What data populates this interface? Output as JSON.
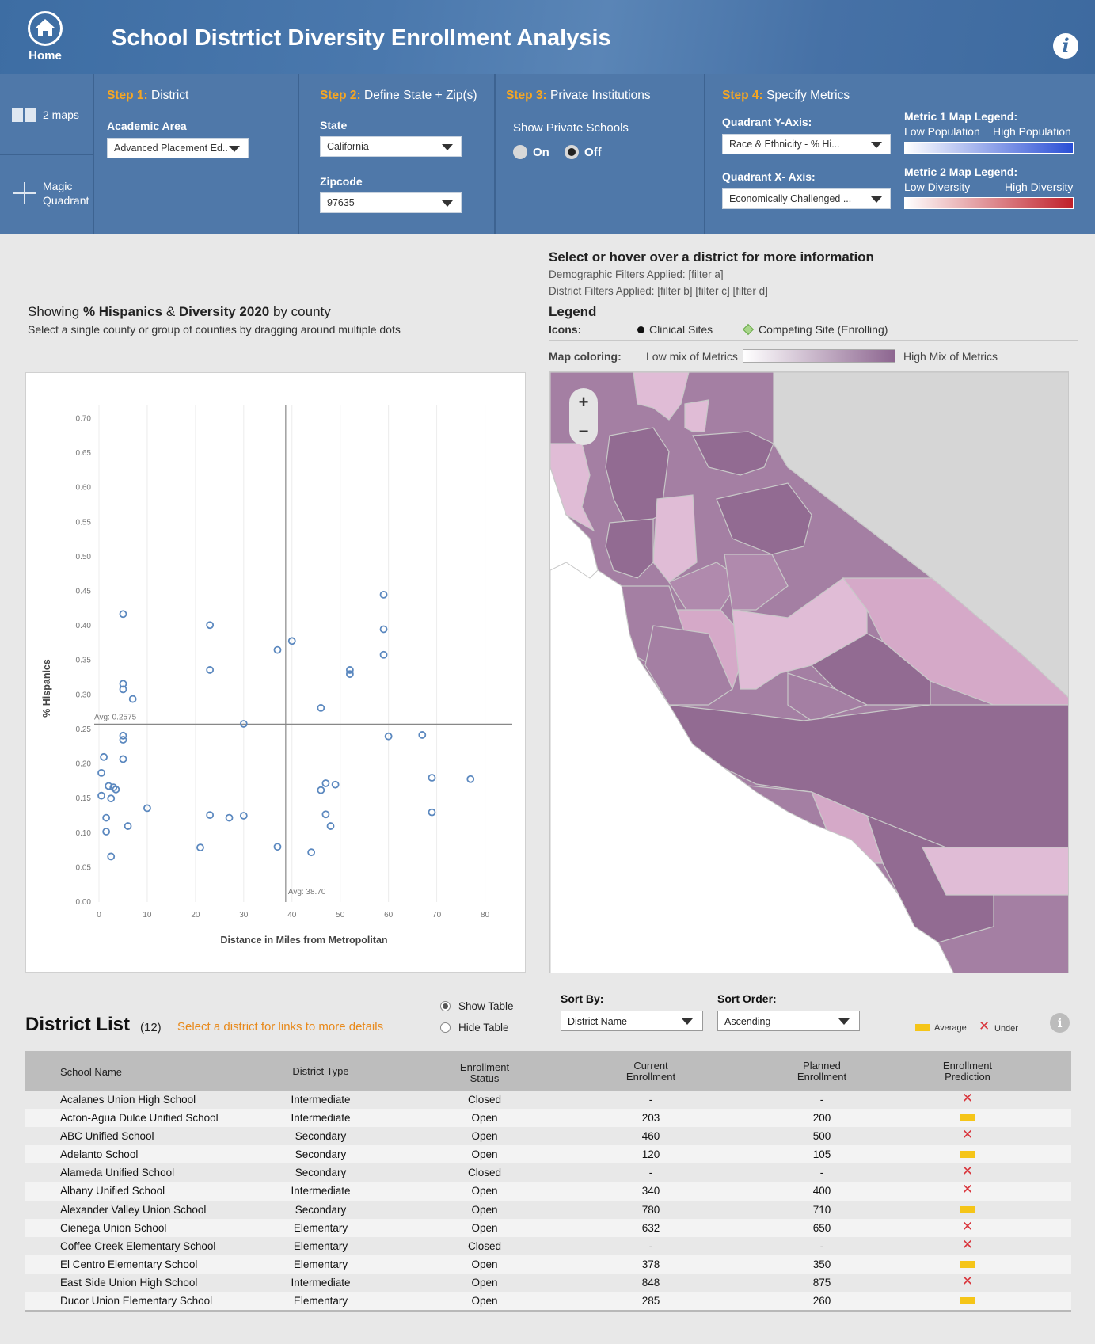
{
  "header": {
    "home_label": "Home",
    "title": "School Distrtict Diversity Enrollment Analysis",
    "info_glyph": "i"
  },
  "side_nav": [
    {
      "label": "2 maps",
      "icon": "two-maps-icon"
    },
    {
      "label": "Magic Quadrant",
      "icon": "crosshair-icon"
    }
  ],
  "step1": {
    "num": "Step 1:",
    "title": "District",
    "field_label": "Academic Area",
    "select_value": "Advanced Placement Ed.."
  },
  "step2": {
    "num": "Step 2:",
    "title": "Define State + Zip(s)",
    "state_label": "State",
    "state_value": "California",
    "zip_label": "Zipcode",
    "zip_value": "97635"
  },
  "step3": {
    "num": "Step 3:",
    "title": "Private Institutions",
    "label": "Show Private Schools",
    "on_label": "On",
    "off_label": "Off",
    "selected": "Off"
  },
  "step4": {
    "num": "Step 4:",
    "title": "Specify Metrics",
    "y_label": "Quadrant Y-Axis:",
    "y_value": "Race & Ethnicity - % Hi...",
    "x_label": "Quadrant X- Axis:",
    "x_value": "Economically Challenged ...",
    "m1_title": "Metric 1 Map Legend:",
    "m1_low": "Low Population",
    "m1_high": "High Population",
    "m2_title": "Metric 2 Map Legend:",
    "m2_low": "Low Diversity",
    "m2_high": "High Diversity",
    "m1_color": "#2a4fd6",
    "m2_color": "#c0202a"
  },
  "chart_caption": {
    "prefix": "Showing ",
    "metric": "% Hispanics",
    "amp": " & ",
    "metric2": "Diversity 2020",
    "suffix": " by county",
    "hint": "Select a single county or group of counties by dragging around multiple dots"
  },
  "chart_data": {
    "type": "scatter",
    "xlabel": "Distance in Miles from Metropolitan",
    "ylabel": "% Hispanics",
    "xlim": [
      0,
      85
    ],
    "ylim": [
      0,
      0.72
    ],
    "xticks": [
      "0",
      "10",
      "20",
      "30",
      "40",
      "50",
      "60",
      "70",
      "80"
    ],
    "yticks": [
      "0.00",
      "0.05",
      "0.10",
      "0.15",
      "0.20",
      "0.25",
      "0.30",
      "0.35",
      "0.40",
      "0.45",
      "0.50",
      "0.55",
      "0.60",
      "0.65",
      "0.70"
    ],
    "avg_x": 38.7,
    "avg_x_label": "Avg: 38.70",
    "avg_y": 0.2575,
    "avg_y_label": "Avg: 0.2575",
    "point_color": "#5b88bf",
    "points": [
      [
        5,
        0.417
      ],
      [
        23,
        0.401
      ],
      [
        5,
        0.316
      ],
      [
        5,
        0.308
      ],
      [
        7,
        0.294
      ],
      [
        23,
        0.336
      ],
      [
        30,
        0.258
      ],
      [
        5,
        0.241
      ],
      [
        5,
        0.235
      ],
      [
        1,
        0.21
      ],
      [
        5,
        0.207
      ],
      [
        0.5,
        0.187
      ],
      [
        2,
        0.168
      ],
      [
        3,
        0.166
      ],
      [
        3.5,
        0.163
      ],
      [
        0.5,
        0.154
      ],
      [
        2.5,
        0.15
      ],
      [
        10,
        0.136
      ],
      [
        1.5,
        0.122
      ],
      [
        6,
        0.11
      ],
      [
        1.5,
        0.102
      ],
      [
        2.5,
        0.066
      ],
      [
        21,
        0.079
      ],
      [
        23,
        0.126
      ],
      [
        27,
        0.122
      ],
      [
        30,
        0.125
      ],
      [
        37,
        0.365
      ],
      [
        40,
        0.378
      ],
      [
        37,
        0.08
      ],
      [
        44,
        0.072
      ],
      [
        46,
        0.281
      ],
      [
        52,
        0.336
      ],
      [
        52,
        0.33
      ],
      [
        59,
        0.445
      ],
      [
        59,
        0.395
      ],
      [
        59,
        0.358
      ],
      [
        60,
        0.24
      ],
      [
        67,
        0.242
      ],
      [
        69,
        0.18
      ],
      [
        77,
        0.178
      ],
      [
        69,
        0.13
      ],
      [
        47,
        0.172
      ],
      [
        46,
        0.162
      ],
      [
        49,
        0.17
      ],
      [
        47,
        0.127
      ],
      [
        48,
        0.11
      ]
    ]
  },
  "info_panel": {
    "title": "Select or hover over a district for more information",
    "demo_filters": "Demographic Filters Applied: [filter a]",
    "district_filters": "District Filters Applied: [filter b] [filter c] [filter d]",
    "legend_title": "Legend",
    "icons_label": "Icons:",
    "clinical": "Clinical Sites",
    "competing": "Competing Site (Enrolling)",
    "coloring_label": "Map coloring:",
    "coloring_low": "Low mix of Metrics",
    "coloring_high": "High Mix of Metrics"
  },
  "map": {
    "zoom_in": "+",
    "zoom_out": "−",
    "light": "#e0bcd6",
    "mid": "#b08aad",
    "dark": "#926b92",
    "mid2": "#a47fa3",
    "lightmid": "#d5a9c8",
    "bg_gray": "#d6d6d6"
  },
  "district_list": {
    "title": "District List",
    "count": "(12)",
    "hint": "Select a district for links to more details",
    "show_table": "Show Table",
    "hide_table": "Hide Table",
    "sort_by_label": "Sort By:",
    "sort_by_value": "District Name",
    "sort_order_label": "Sort Order:",
    "sort_order_value": "Ascending",
    "key_average": "Average",
    "key_under": "Under",
    "under_glyph": "✕",
    "info_glyph": "i",
    "columns": [
      "School Name",
      "District Type",
      "Enrollment Status",
      "Current Enrollment",
      "Planned Enrollment",
      "Enrollment Prediction"
    ],
    "rows": [
      {
        "name": "Acalanes Union High School",
        "type": "Intermediate",
        "status": "Closed",
        "current": "-",
        "planned": "-",
        "pred": "under"
      },
      {
        "name": "Acton-Agua Dulce Unified School",
        "type": "Intermediate",
        "status": "Open",
        "current": "203",
        "planned": "200",
        "pred": "average"
      },
      {
        "name": "ABC Unified School",
        "type": "Secondary",
        "status": "Open",
        "current": "460",
        "planned": "500",
        "pred": "under"
      },
      {
        "name": "Adelanto School",
        "type": "Secondary",
        "status": "Open",
        "current": "120",
        "planned": "105",
        "pred": "average"
      },
      {
        "name": "Alameda Unified School",
        "type": "Secondary",
        "status": "Closed",
        "current": "-",
        "planned": "-",
        "pred": "under"
      },
      {
        "name": "Albany Unified School",
        "type": "Intermediate",
        "status": "Open",
        "current": "340",
        "planned": "400",
        "pred": "under"
      },
      {
        "name": "Alexander Valley Union School",
        "type": "Secondary",
        "status": "Open",
        "current": "780",
        "planned": "710",
        "pred": "average"
      },
      {
        "name": "Cienega Union School",
        "type": "Elementary",
        "status": "Open",
        "current": "632",
        "planned": "650",
        "pred": "under"
      },
      {
        "name": "Coffee Creek Elementary School",
        "type": "Elementary",
        "status": "Closed",
        "current": "-",
        "planned": "-",
        "pred": "under"
      },
      {
        "name": "El Centro Elementary School",
        "type": "Elementary",
        "status": "Open",
        "current": "378",
        "planned": "350",
        "pred": "average"
      },
      {
        "name": "East Side Union High School",
        "type": "Intermediate",
        "status": "Open",
        "current": "848",
        "planned": "875",
        "pred": "under"
      },
      {
        "name": "Ducor Union Elementary School",
        "type": "Elementary",
        "status": "Open",
        "current": "285",
        "planned": "260",
        "pred": "average"
      }
    ]
  }
}
